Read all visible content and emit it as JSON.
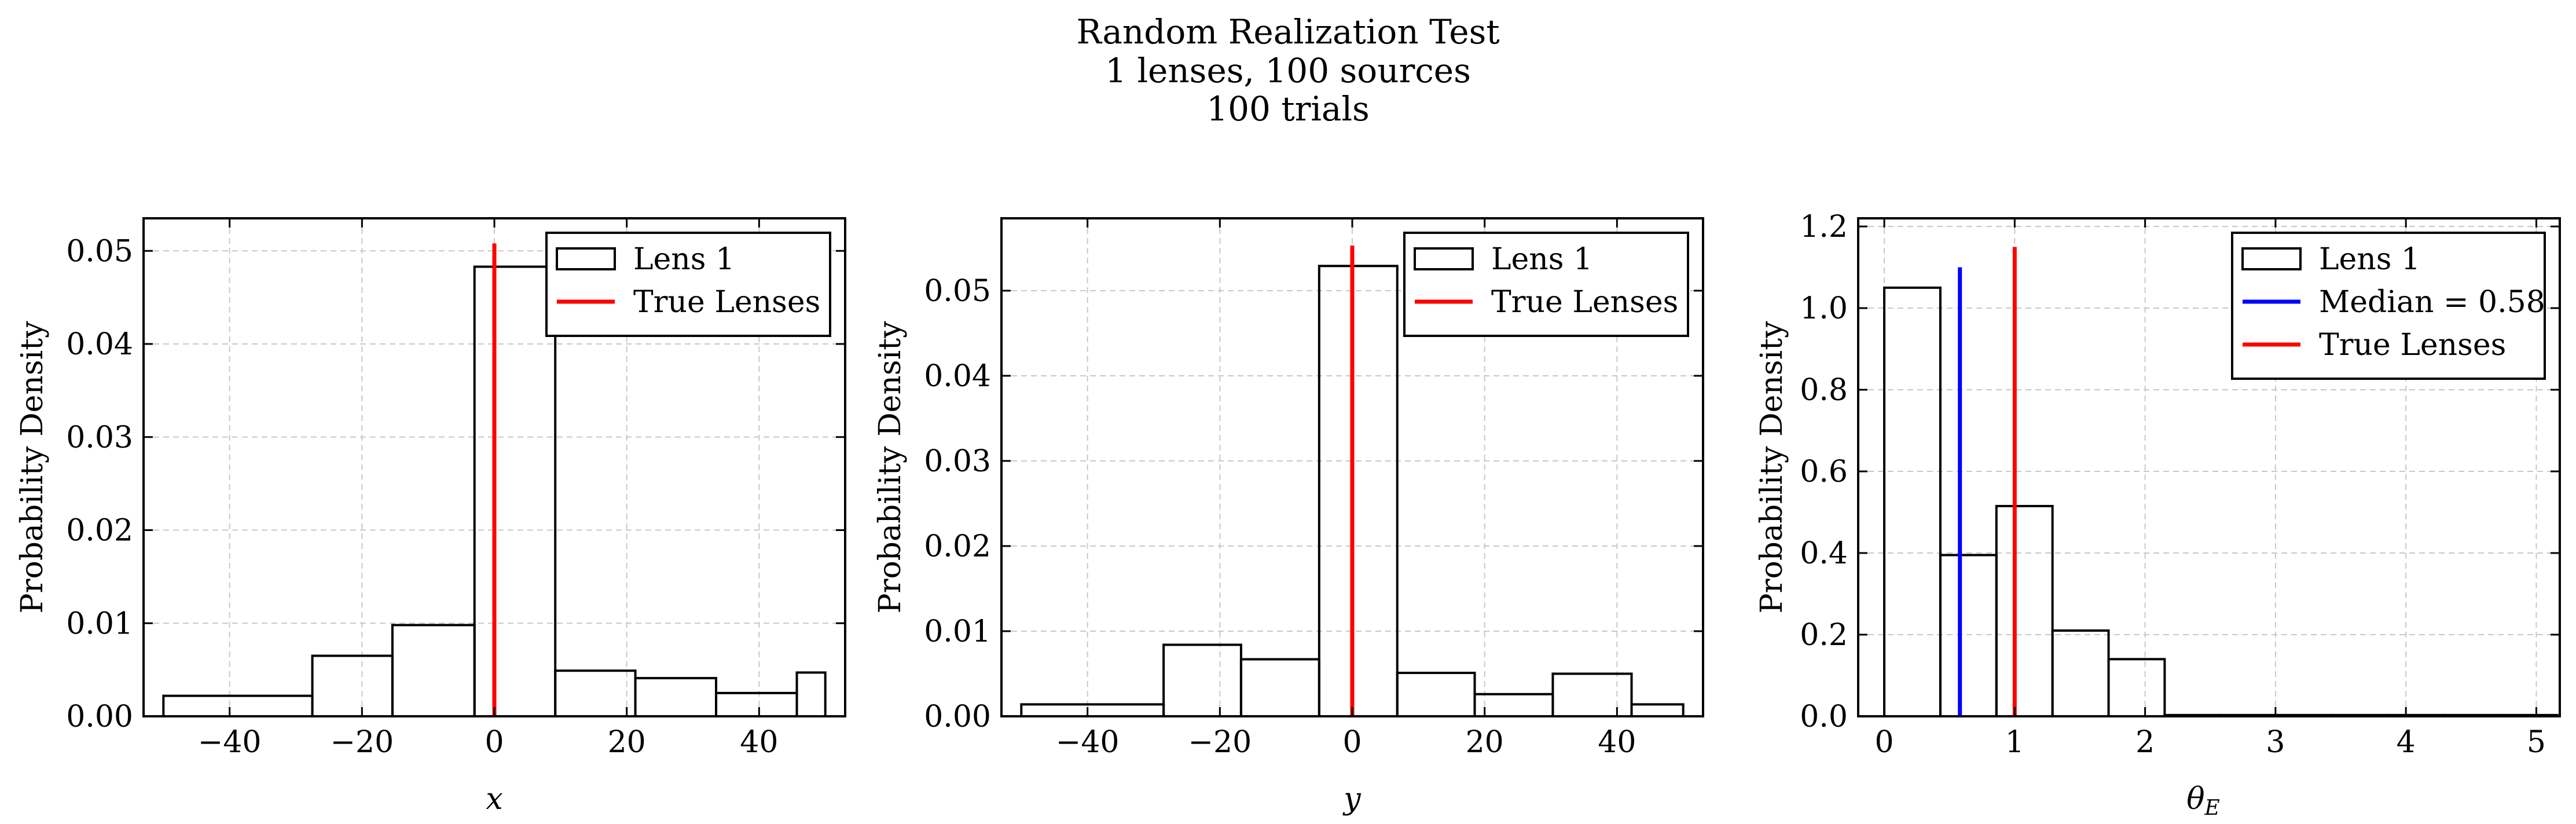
{
  "figure": {
    "title_lines": [
      "Random Realization Test",
      "1 lenses, 100 sources",
      "100 trials"
    ]
  },
  "chart_data": [
    {
      "type": "histogram",
      "xlabel": "x",
      "ylabel": "Probability Density",
      "xlim": [
        -53,
        53
      ],
      "ylim": [
        0,
        0.0535
      ],
      "xticks": [
        -40,
        -20,
        0,
        20,
        40
      ],
      "xtick_labels": [
        "−40",
        "−20",
        "0",
        "20",
        "40"
      ],
      "yticks": [
        0,
        0.01,
        0.02,
        0.03,
        0.04,
        0.05
      ],
      "ytick_labels": [
        "0.00",
        "0.01",
        "0.02",
        "0.03",
        "0.04",
        "0.05"
      ],
      "grid": true,
      "bins": [
        -50,
        -27.5,
        -15.4,
        -3,
        9.2,
        21.3,
        33.5,
        45.7,
        50
      ],
      "values": [
        0.0022,
        0.0065,
        0.0098,
        0.0483,
        0.0049,
        0.0041,
        0.0025,
        0.0047
      ],
      "vlines": [
        {
          "x": 0,
          "ymax": 0.0508,
          "color": "#ff0000",
          "label": "True Lenses"
        }
      ],
      "legend": {
        "position": "top-right",
        "entries": [
          {
            "label": "Lens 1",
            "kind": "box"
          },
          {
            "label": "True Lenses",
            "kind": "line",
            "color": "#ff0000"
          }
        ]
      }
    },
    {
      "type": "histogram",
      "xlabel": "y",
      "ylabel": "Probability Density",
      "xlim": [
        -53,
        53
      ],
      "ylim": [
        0,
        0.0585
      ],
      "xticks": [
        -40,
        -20,
        0,
        20,
        40
      ],
      "xtick_labels": [
        "−40",
        "−20",
        "0",
        "20",
        "40"
      ],
      "yticks": [
        0,
        0.01,
        0.02,
        0.03,
        0.04,
        0.05
      ],
      "ytick_labels": [
        "0.00",
        "0.01",
        "0.02",
        "0.03",
        "0.04",
        "0.05"
      ],
      "grid": true,
      "bins": [
        -50,
        -28.5,
        -16.8,
        -5,
        6.8,
        18.5,
        30.3,
        42.2,
        50
      ],
      "values": [
        0.0014,
        0.0084,
        0.0067,
        0.0529,
        0.0051,
        0.0026,
        0.005,
        0.0014
      ],
      "vlines": [
        {
          "x": 0,
          "ymax": 0.0553,
          "color": "#ff0000",
          "label": "True Lenses"
        }
      ],
      "legend": {
        "position": "top-right",
        "entries": [
          {
            "label": "Lens 1",
            "kind": "box"
          },
          {
            "label": "True Lenses",
            "kind": "line",
            "color": "#ff0000"
          }
        ]
      }
    },
    {
      "type": "histogram",
      "xlabel": "θE",
      "ylabel": "Probability Density",
      "xlim": [
        -0.2,
        5.18
      ],
      "ylim": [
        0,
        1.22
      ],
      "xticks": [
        0,
        1,
        2,
        3,
        4,
        5
      ],
      "xtick_labels": [
        "0",
        "1",
        "2",
        "3",
        "4",
        "5"
      ],
      "yticks": [
        0,
        0.2,
        0.4,
        0.6,
        0.8,
        1.0,
        1.2
      ],
      "ytick_labels": [
        "0.0",
        "0.2",
        "0.4",
        "0.6",
        "0.8",
        "1.0",
        "1.2"
      ],
      "grid": true,
      "bins": [
        0,
        0.43,
        0.86,
        1.29,
        1.72,
        2.15,
        2.58,
        3.01,
        3.44,
        3.87,
        4.3,
        4.73,
        5.16
      ],
      "values": [
        1.05,
        0.395,
        0.515,
        0.21,
        0.14,
        0.003,
        0.003,
        0.003,
        0.003,
        0.003,
        0.003,
        0.003
      ],
      "vlines": [
        {
          "x": 0.58,
          "ymax": 1.1,
          "color": "#0000ff",
          "label": "Median = 0.58"
        },
        {
          "x": 1.0,
          "ymax": 1.15,
          "color": "#ff0000",
          "label": "True Lenses"
        }
      ],
      "legend": {
        "position": "top-right",
        "entries": [
          {
            "label": "Lens 1",
            "kind": "box"
          },
          {
            "label": "Median = 0.58",
            "kind": "line",
            "color": "#0000ff"
          },
          {
            "label": "True Lenses",
            "kind": "line",
            "color": "#ff0000"
          }
        ]
      }
    }
  ]
}
